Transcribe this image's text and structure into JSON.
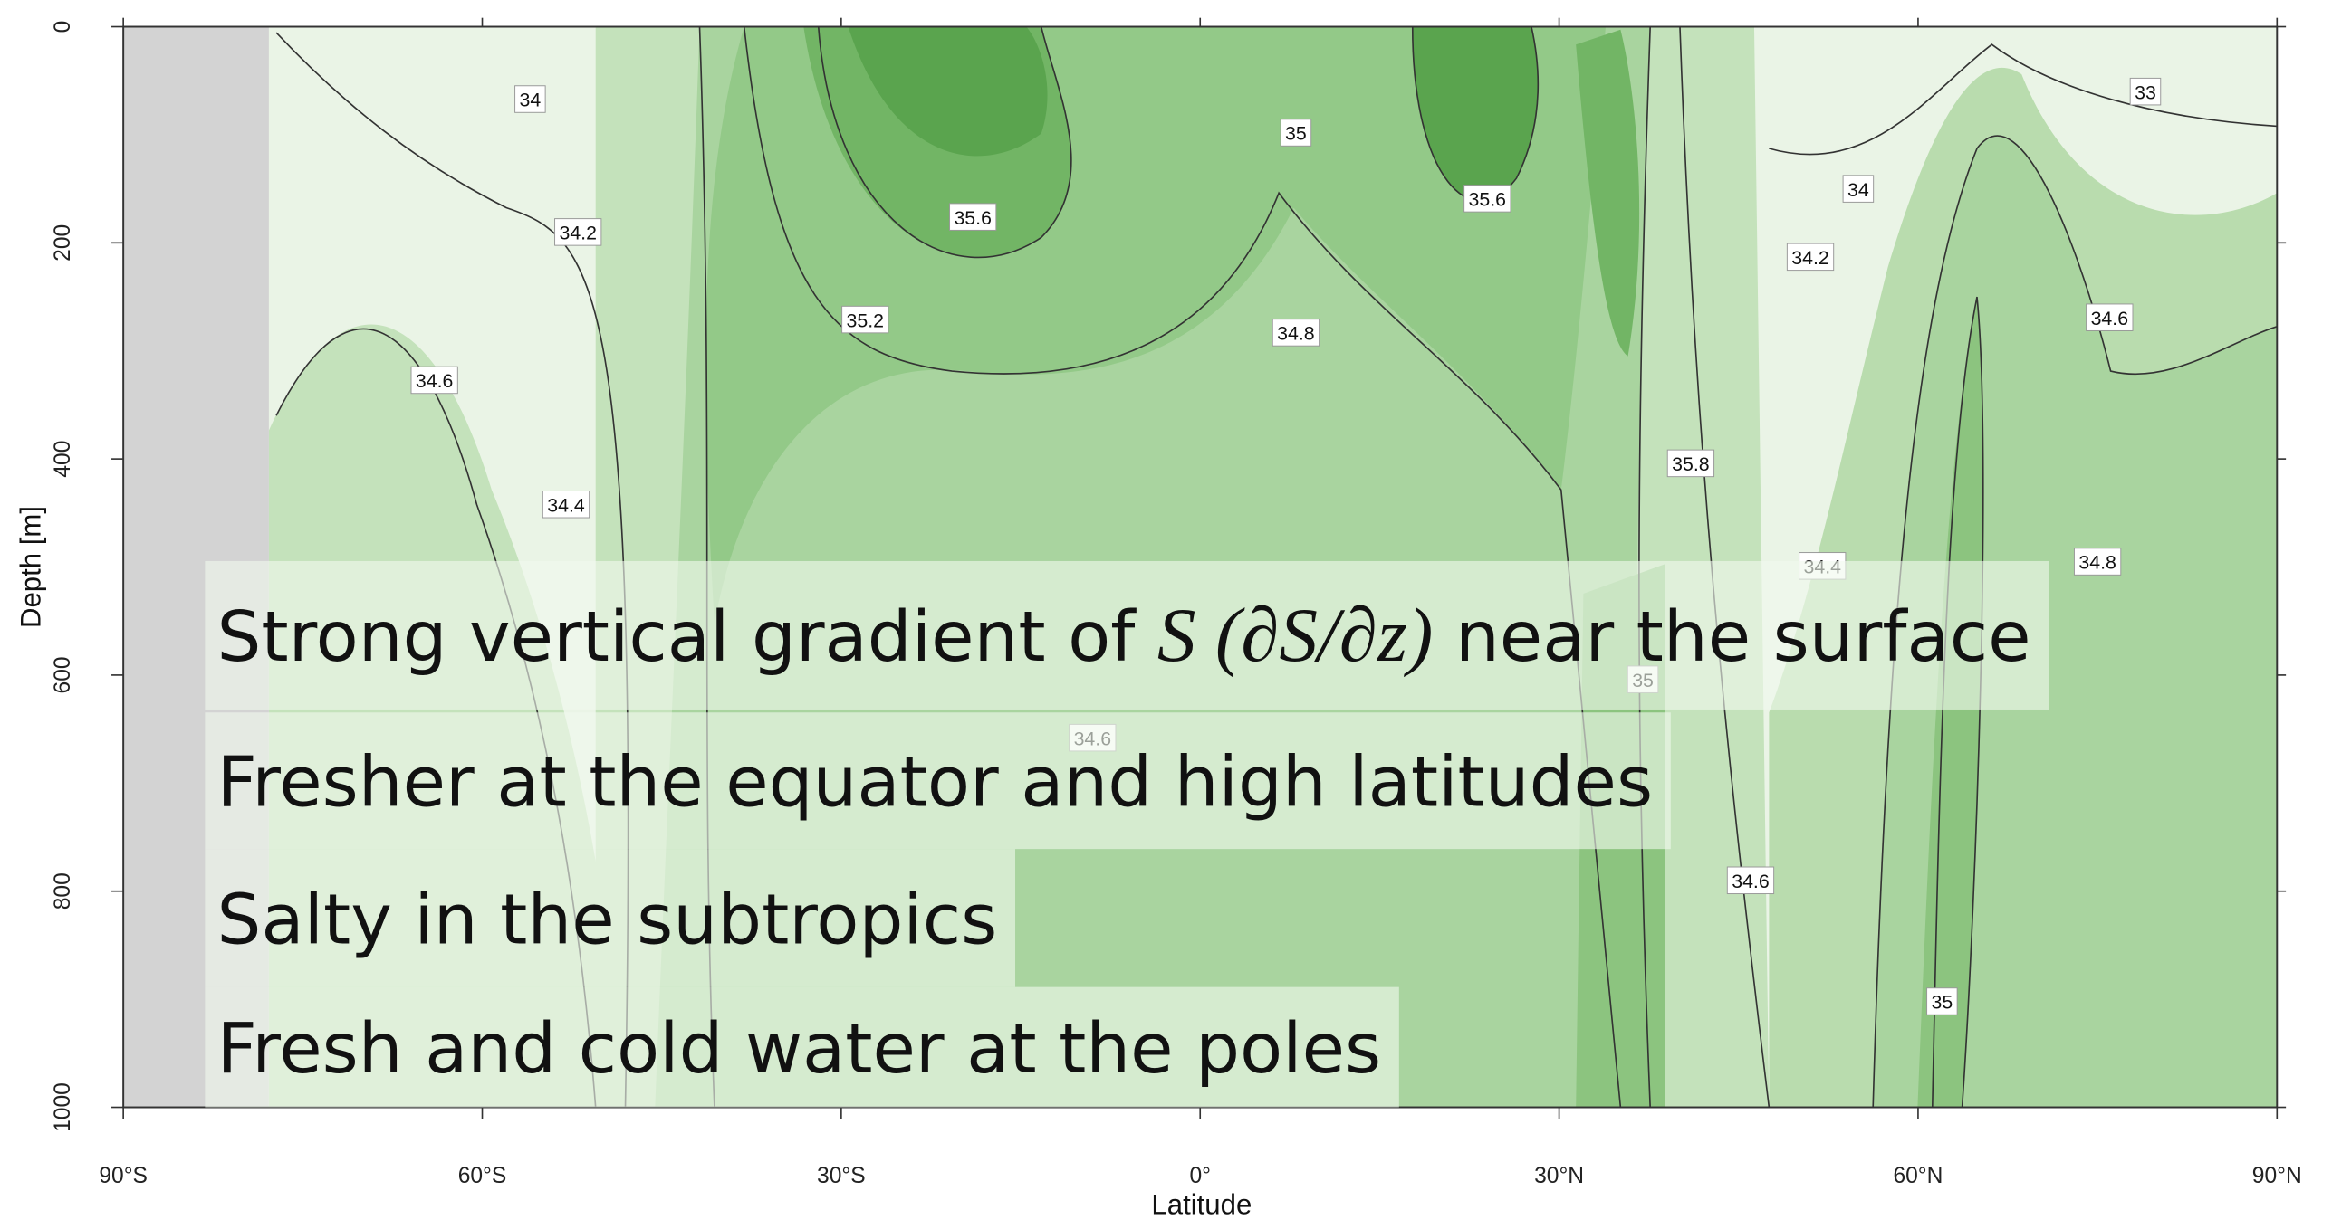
{
  "chart_data": {
    "type": "contour",
    "xlabel": "Latitude",
    "ylabel": "Depth [m]",
    "xlim": [
      -90,
      90
    ],
    "ylim": [
      0,
      1000
    ],
    "xticks": [
      {
        "value": -90,
        "label": "90°S"
      },
      {
        "value": -60,
        "label": "60°S"
      },
      {
        "value": -30,
        "label": "30°S"
      },
      {
        "value": 0,
        "label": "0°"
      },
      {
        "value": 30,
        "label": "30°N"
      },
      {
        "value": 60,
        "label": "60°N"
      },
      {
        "value": 90,
        "label": "90°N"
      }
    ],
    "yticks": [
      0,
      200,
      400,
      600,
      800,
      1000
    ],
    "y_inverted": true,
    "contour_labels": [
      {
        "x": -56,
        "y": 67,
        "value": 34
      },
      {
        "x": -52,
        "y": 190,
        "value": 34.2
      },
      {
        "x": -64,
        "y": 327,
        "value": 34.6
      },
      {
        "x": -53,
        "y": 442,
        "value": 34.4
      },
      {
        "x": -19,
        "y": 176,
        "value": 35.6
      },
      {
        "x": -28,
        "y": 271,
        "value": 35.2
      },
      {
        "x": 8,
        "y": 98,
        "value": 35
      },
      {
        "x": 8,
        "y": 283,
        "value": 34.8
      },
      {
        "x": 24,
        "y": 159,
        "value": 35.6
      },
      {
        "x": 41,
        "y": 404,
        "value": 35.8
      },
      {
        "x": 55,
        "y": 150,
        "value": 34
      },
      {
        "x": 51,
        "y": 213,
        "value": 34.2
      },
      {
        "x": 79,
        "y": 60,
        "value": 33
      },
      {
        "x": 76,
        "y": 269,
        "value": 34.6
      },
      {
        "x": 52,
        "y": 499,
        "value": 34.4
      },
      {
        "x": 75,
        "y": 495,
        "value": 34.8
      },
      {
        "x": 37,
        "y": 604,
        "value": 35
      },
      {
        "x": -9,
        "y": 658,
        "value": 34.6
      },
      {
        "x": 46,
        "y": 790,
        "value": 34.6
      },
      {
        "x": 62,
        "y": 902,
        "value": 35
      }
    ]
  },
  "overlay_text": [
    [
      "Strong vertical gradient of ",
      "S (∂S/∂z)",
      " near the surface"
    ],
    [
      "Fresher at the equator and high latitudes"
    ],
    [
      "Salty in the subtropics"
    ],
    [
      "Fresh and cold water at the poles"
    ]
  ]
}
